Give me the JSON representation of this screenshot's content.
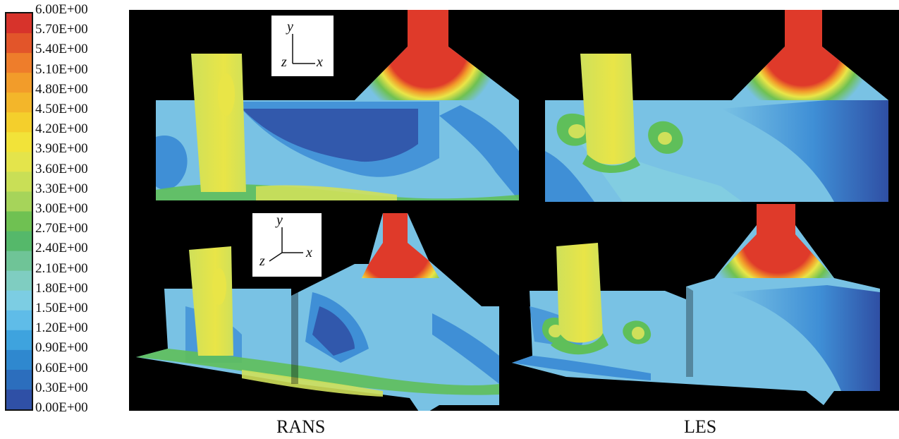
{
  "legend": {
    "ticks": [
      "6.00E+00",
      "5.70E+00",
      "5.40E+00",
      "5.10E+00",
      "4.80E+00",
      "4.50E+00",
      "4.20E+00",
      "3.90E+00",
      "3.60E+00",
      "3.30E+00",
      "3.00E+00",
      "2.70E+00",
      "2.40E+00",
      "2.10E+00",
      "1.80E+00",
      "1.50E+00",
      "1.20E+00",
      "0.90E+00",
      "0.60E+00",
      "0.30E+00",
      "0.00E+00"
    ],
    "colors": [
      "#d7332b",
      "#e2552a",
      "#ee7d2b",
      "#f29c2a",
      "#f3b62a",
      "#f4cf2c",
      "#f2e339",
      "#e4e44b",
      "#c9df56",
      "#a6d45a",
      "#6fc152",
      "#55b86a",
      "#6fc497",
      "#7fcdc1",
      "#7ccde3",
      "#5fbce8",
      "#3ea3de",
      "#2f88cf",
      "#2c6ebd",
      "#2f50a6"
    ]
  },
  "colors": {
    "background": "#000000",
    "dark_blue": "#2f4fa4",
    "blue": "#3f8fd6",
    "light_blue": "#79c2e4",
    "cyan": "#88d3df",
    "green": "#5fbf5a",
    "yellow_green": "#cfe05a",
    "yellow": "#e9e547",
    "orange": "#f3a72a",
    "red": "#df3a2a"
  },
  "axes_top": {
    "y": "y",
    "z": "z",
    "x": "x"
  },
  "axes_bottom": {
    "y": "y",
    "z": "z",
    "x": "x"
  },
  "captions": {
    "rans": "RANS",
    "les": "LES"
  }
}
